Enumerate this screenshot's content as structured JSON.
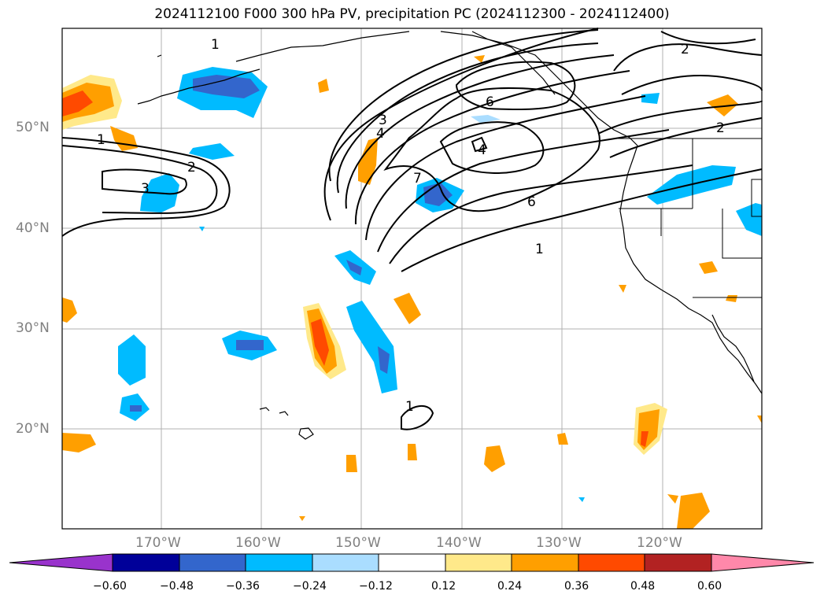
{
  "title": "2024112100 F000 300 hPa PV, precipitation PC (2024112300 - 2024112400)",
  "map": {
    "lat_labels": [
      "50°N",
      "40°N",
      "30°N",
      "20°N"
    ],
    "lon_labels": [
      "170°W",
      "160°W",
      "150°W",
      "140°W",
      "130°W",
      "120°W"
    ],
    "contour_labels": [
      "1",
      "2",
      "3",
      "1",
      "3",
      "4",
      "7",
      "6",
      "4",
      "6",
      "1",
      "2",
      "1",
      "2"
    ]
  },
  "colorbar": {
    "ticks": [
      "−0.60",
      "−0.48",
      "−0.36",
      "−0.24",
      "−0.12",
      "0.12",
      "0.24",
      "0.36",
      "0.48",
      "0.60"
    ],
    "colors": [
      "#9933cc",
      "#000099",
      "#3366cc",
      "#00bbff",
      "#aaddff",
      "#ffffff",
      "#ffe98a",
      "#ff9f00",
      "#ff4a00",
      "#b22222",
      "#ff88aa"
    ]
  }
}
